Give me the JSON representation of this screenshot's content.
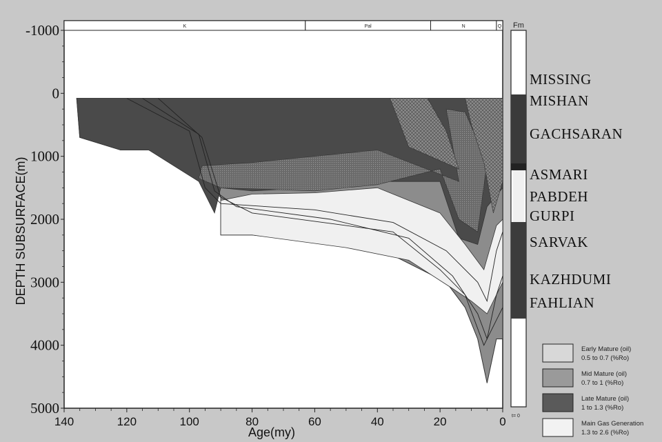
{
  "chart_data": {
    "type": "area",
    "xlabel": "Age(my)",
    "ylabel": "DEPTH SUBSURFACE(m)",
    "xlim": [
      140,
      0
    ],
    "ylim": [
      -1000,
      5000
    ],
    "x_ticks": [
      "140",
      "120",
      "100",
      "80",
      "60",
      "40",
      "20",
      "0"
    ],
    "y_ticks": [
      "-1000",
      "0",
      "1000",
      "2000",
      "3000",
      "4000",
      "5000"
    ],
    "periods": [
      {
        "label": "K",
        "from": 140,
        "to": 63
      },
      {
        "label": "Pal",
        "from": 63,
        "to": 23
      },
      {
        "label": "N",
        "from": 23,
        "to": 2
      },
      {
        "label": "Q",
        "from": 2,
        "to": 0
      }
    ],
    "fm_header": "Fm",
    "formations": [
      "MISSING",
      "MISHAN",
      "GACHSARAN",
      "ASMARI",
      "PABDEH",
      "GURPI",
      "SARVAK",
      "KAZHDUMI",
      "FAHLIAN"
    ],
    "column_bottom_label": "t= 0",
    "legend": [
      {
        "line1": "Early Mature (oil)",
        "line2": "0.5 to 0.7 (%Ro)",
        "color": "#d8d8d8"
      },
      {
        "line1": "Mid Mature (oil)",
        "line2": "0.7 to 1 (%Ro)",
        "color": "#9a9a9a"
      },
      {
        "line1": "Late Mature (oil)",
        "line2": "1 to 1.3 (%Ro)",
        "color": "#5a5a5a"
      },
      {
        "line1": "Main Gas Generation",
        "line2": "1.3 to 2.6 (%Ro)",
        "color": "#f2f2f2"
      }
    ],
    "burial_top": [
      [
        136,
        80
      ],
      [
        0,
        80
      ]
    ],
    "burial_base": [
      [
        136,
        80
      ],
      [
        135,
        700
      ],
      [
        122,
        900
      ],
      [
        113,
        900
      ],
      [
        97,
        1200
      ],
      [
        96,
        1400
      ],
      [
        90,
        1650
      ],
      [
        90,
        2250
      ],
      [
        80,
        2250
      ],
      [
        60,
        2350
      ],
      [
        40,
        2450
      ],
      [
        18,
        3000
      ],
      [
        12,
        3400
      ],
      [
        8,
        3900
      ],
      [
        5,
        4600
      ],
      [
        2,
        3900
      ],
      [
        0,
        3900
      ]
    ],
    "zones": [
      {
        "name": "Late Mature",
        "points": [
          [
            136,
            80
          ],
          [
            0,
            80
          ],
          [
            0,
            1500
          ],
          [
            5,
            1800
          ],
          [
            8,
            2400
          ],
          [
            14,
            2300
          ],
          [
            20,
            1400
          ],
          [
            40,
            1400
          ],
          [
            60,
            1500
          ],
          [
            80,
            1550
          ],
          [
            90,
            1500
          ],
          [
            92,
            1900
          ],
          [
            97,
            1400
          ],
          [
            113,
            900
          ],
          [
            122,
            900
          ],
          [
            135,
            700
          ]
        ]
      },
      {
        "name": "Main Gas Generation",
        "points": [
          [
            90,
            1700
          ],
          [
            80,
            1600
          ],
          [
            60,
            1580
          ],
          [
            40,
            1500
          ],
          [
            30,
            1700
          ],
          [
            20,
            1900
          ],
          [
            12,
            2400
          ],
          [
            6,
            2800
          ],
          [
            2,
            2100
          ],
          [
            0,
            2000
          ],
          [
            0,
            3000
          ],
          [
            5,
            3500
          ],
          [
            10,
            3300
          ],
          [
            16,
            3100
          ],
          [
            30,
            2650
          ],
          [
            50,
            2450
          ],
          [
            80,
            2250
          ],
          [
            90,
            2250
          ]
        ]
      }
    ]
  }
}
